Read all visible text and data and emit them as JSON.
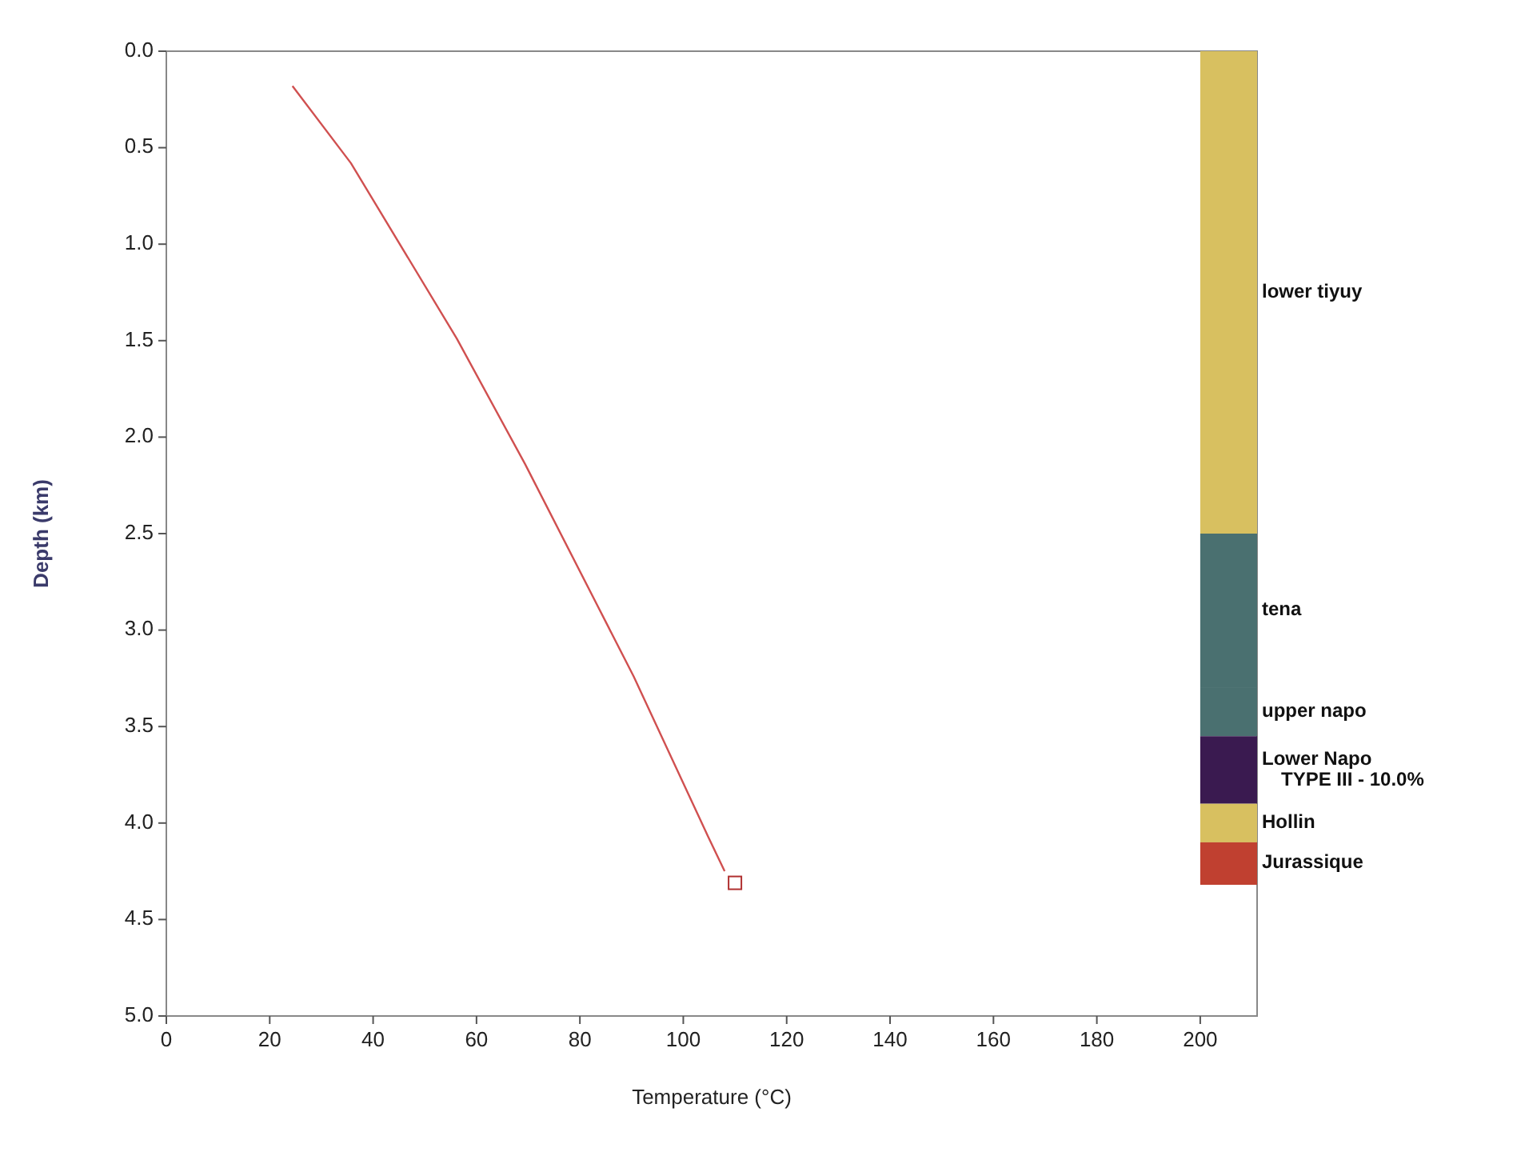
{
  "chart_data": {
    "type": "line",
    "xlabel": "Temperature (°C)",
    "ylabel": "Depth (km)",
    "xlim": [
      0,
      211
    ],
    "xticks": [
      0,
      20,
      40,
      60,
      80,
      100,
      120,
      140,
      160,
      180,
      200
    ],
    "ylim": [
      5,
      0
    ],
    "yticks": [
      {
        "value": 0,
        "label": "0.0"
      },
      {
        "value": 0.5,
        "label": "0.5"
      },
      {
        "value": 1,
        "label": "1.0"
      },
      {
        "value": 1.5,
        "label": "1.5"
      },
      {
        "value": 2,
        "label": "2.0"
      },
      {
        "value": 2.5,
        "label": "2.5"
      },
      {
        "value": 3,
        "label": "3.0"
      },
      {
        "value": 3.5,
        "label": "3.5"
      },
      {
        "value": 4,
        "label": "4.0"
      },
      {
        "value": 4.5,
        "label": "4.5"
      },
      {
        "value": 5,
        "label": "5.0"
      }
    ],
    "series": [
      {
        "type": "line",
        "color": "#d05050",
        "marker": "none",
        "x": [
          24.4,
          35.7,
          56.2,
          69.4,
          90.4,
          104.8,
          108
        ],
        "values": [
          0.18,
          0.58,
          1.49,
          2.14,
          3.24,
          4.07,
          4.25
        ]
      },
      {
        "type": "scatter",
        "color": "#b03030",
        "marker": "square",
        "x": [
          110
        ],
        "values": [
          4.31
        ]
      }
    ],
    "bands": [
      {
        "axis": "y",
        "from": 0,
        "to": 2.5,
        "label": "lower tiyuy",
        "color": "#d8c060"
      },
      {
        "axis": "y",
        "from": 2.5,
        "to": 3.3,
        "label": "tena",
        "color": "#4a7070"
      },
      {
        "axis": "y",
        "from": 3.3,
        "to": 3.55,
        "label": "upper napo",
        "color": "#4a7070"
      },
      {
        "axis": "y",
        "from": 3.55,
        "to": 3.9,
        "label": "Lower Napo\nTYPE III - 10.0%",
        "color": "#3a1a50"
      },
      {
        "axis": "y",
        "from": 3.9,
        "to": 4.1,
        "label": "Hollin",
        "color": "#d8c060"
      },
      {
        "axis": "y",
        "from": 4.1,
        "to": 4.32,
        "label": "Jurassique",
        "color": "#c04030"
      }
    ]
  }
}
